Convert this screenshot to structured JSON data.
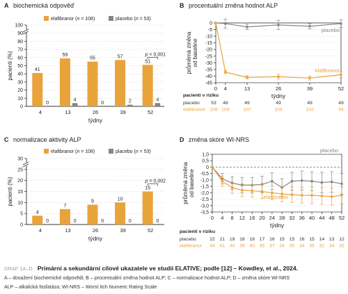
{
  "colors": {
    "elafibranor": "#e9a33b",
    "placebo": "#858585",
    "axis": "#333333",
    "grid": "#cfcfcf"
  },
  "chart_data": [
    {
      "panel": "A",
      "type": "bar",
      "title": "biochemická odpověď",
      "ylabel": "pacienti (%)",
      "xlabel": "týdny",
      "ylim": [
        0,
        100
      ],
      "yticks": [
        0,
        10,
        20,
        30,
        40,
        50,
        60,
        70,
        80,
        90,
        100
      ],
      "axis_break": true,
      "categories": [
        "4",
        "13",
        "26",
        "39",
        "52"
      ],
      "series": [
        {
          "name": "elafibranor",
          "n_label": "(n = 108)",
          "values": [
            41,
            59,
            55,
            57,
            51
          ]
        },
        {
          "name": "placebo",
          "n_label": "(n = 53)",
          "values": [
            0,
            4,
            0,
            2,
            4
          ]
        }
      ],
      "annotation": "p < 0,001"
    },
    {
      "panel": "B",
      "type": "line",
      "title": "procentuální změna hodnot ALP",
      "ylabel": "průměrná změna od baseline",
      "xlabel": "týdny",
      "ylim": [
        -45,
        0
      ],
      "yticks": [
        0,
        -5,
        -10,
        -15,
        -20,
        -25,
        -30,
        -35,
        -40,
        -45
      ],
      "xticks": [
        0,
        4,
        13,
        26,
        39,
        52
      ],
      "series": [
        {
          "name": "placebo",
          "x": [
            0,
            4,
            13,
            26,
            39,
            52
          ],
          "y": [
            0,
            -0.5,
            -3,
            -1.5,
            -2.5,
            -0.5
          ],
          "err": [
            0,
            3.5,
            2,
            3.5,
            2,
            3
          ]
        },
        {
          "name": "elafibranor",
          "x": [
            0,
            4,
            13,
            26,
            39,
            52
          ],
          "y": [
            0,
            -37,
            -41,
            -40.5,
            -41.5,
            -39
          ],
          "err": [
            0,
            1.2,
            1.2,
            1.8,
            1.5,
            2
          ]
        }
      ],
      "risk_table": {
        "title": "pacienti v riziku",
        "rows": [
          {
            "name": "placebo",
            "values": [
              "53",
              "48",
              "49",
              "49",
              "49",
              "49"
            ]
          },
          {
            "name": "elafibranor",
            "values": [
              "108",
              "104",
              "107",
              "104",
              "102",
              "94"
            ]
          }
        ]
      }
    },
    {
      "panel": "C",
      "type": "bar",
      "title": "normalizace aktivity ALP",
      "ylabel": "pacienti (%)",
      "xlabel": "týdny",
      "ylim": [
        0,
        30
      ],
      "yticks": [
        0,
        5,
        10,
        15,
        20,
        25,
        30
      ],
      "axis_break": true,
      "categories": [
        "4",
        "13",
        "26",
        "39",
        "52"
      ],
      "series": [
        {
          "name": "elafibranor",
          "n_label": "(n = 108)",
          "values": [
            4,
            7,
            9,
            10,
            15
          ]
        },
        {
          "name": "placebo",
          "n_label": "(n = 53)",
          "values": [
            0,
            0,
            0,
            0,
            0
          ]
        }
      ],
      "annotation": "p = 0,002"
    },
    {
      "panel": "D",
      "type": "line",
      "title": "změna skóre WI-NRS",
      "ylabel": "průměrná změna od baseline",
      "xlabel": "týdny",
      "ylim": [
        -3.5,
        1.0
      ],
      "yticks": [
        1.0,
        0.5,
        0,
        -0.5,
        -1.0,
        -1.5,
        -2.0,
        -2.5,
        -3.0,
        -3.5
      ],
      "xticks": [
        0,
        4,
        8,
        12,
        16,
        20,
        24,
        28,
        32,
        36,
        40,
        44,
        48,
        52
      ],
      "series": [
        {
          "name": "placebo",
          "x": [
            0,
            4,
            8,
            12,
            16,
            20,
            24,
            28,
            32,
            36,
            40,
            44,
            48,
            52
          ],
          "y": [
            0,
            -0.9,
            -1.25,
            -1.4,
            -1.4,
            -1.35,
            -1.1,
            -1.6,
            -1.1,
            -1.05,
            -1.1,
            -1.2,
            -1.15,
            -1.3
          ],
          "err": [
            0,
            0.4,
            0.5,
            0.6,
            0.6,
            0.65,
            0.65,
            0.7,
            0.7,
            0.75,
            0.75,
            0.8,
            0.8,
            0.8
          ]
        },
        {
          "name": "elafibranor",
          "x": [
            0,
            4,
            8,
            12,
            16,
            20,
            24,
            28,
            32,
            36,
            40,
            44,
            48,
            52
          ],
          "y": [
            0,
            -1.1,
            -1.6,
            -1.8,
            -1.85,
            -1.9,
            -2.0,
            -2.1,
            -2.15,
            -2.2,
            -2.2,
            -2.25,
            -2.3,
            -2.2
          ],
          "err": [
            0,
            0.4,
            0.45,
            0.5,
            0.5,
            0.55,
            0.55,
            0.6,
            0.6,
            0.6,
            0.65,
            0.65,
            0.65,
            0.65
          ]
        }
      ],
      "risk_table": {
        "title": "pacienti v riziku",
        "rows": [
          {
            "name": "placebo",
            "values": [
              "22",
              "21",
              "19",
              "18",
              "18",
              "17",
              "16",
              "15",
              "15",
              "16",
              "15",
              "14",
              "13",
              "12"
            ]
          },
          {
            "name": "elafibranor",
            "values": [
              "44",
              "41",
              "40",
              "39",
              "40",
              "35",
              "37",
              "34",
              "35",
              "34",
              "35",
              "32",
              "34",
              "32"
            ]
          }
        ]
      }
    }
  ],
  "caption": {
    "label": "GRAF 1A–D",
    "title": "Primární a sekundární cílové ukazatele ve studii ELATIVE; podle [12] – Kowdley, et al., 2024.",
    "line2": "A – dosažení biochemické odpovědi; B – procentuální změna hodnot ALP; C – normalizace hodnot ALP; D – změna skóre WI-NRS",
    "line3": "ALP – alkalická fosfatáza; WI-NRS – Worst Itch Numeric Rating Scale"
  }
}
